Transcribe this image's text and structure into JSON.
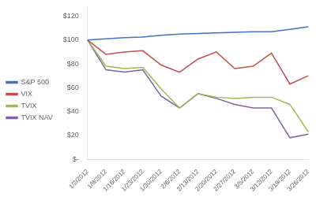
{
  "chart_data": {
    "type": "line",
    "categories": [
      "1/2/2012",
      "1/9/2012",
      "1/16/2012",
      "1/23/2012",
      "1/30/2012",
      "2/6/2012",
      "2/13/2012",
      "2/20/2012",
      "2/27/2012",
      "3/5/2012",
      "3/12/2012",
      "3/19/2012",
      "3/26/2012"
    ],
    "series": [
      {
        "name": "S&P 500",
        "color": "#4472C4",
        "values": [
          100,
          101,
          102,
          102.5,
          104,
          105,
          105.5,
          106,
          106.5,
          107,
          107,
          109,
          111
        ]
      },
      {
        "name": "VIX",
        "color": "#C0504D",
        "values": [
          100,
          88,
          90,
          91,
          79,
          73,
          84,
          90,
          76,
          78,
          89,
          63,
          70
        ]
      },
      {
        "name": "TVIX",
        "color": "#9BBB59",
        "values": [
          100,
          78,
          76,
          77,
          59,
          43,
          55,
          52,
          51,
          52,
          52,
          46,
          23
        ]
      },
      {
        "name": "TVIX NAV",
        "color": "#8064A2",
        "values": [
          100,
          75,
          73,
          75,
          53,
          43,
          55,
          51,
          46,
          43,
          43,
          18,
          21
        ]
      }
    ],
    "ylim": [
      0,
      128
    ],
    "yticks": [
      {
        "value": 0,
        "label": "$-"
      },
      {
        "value": 20,
        "label": "$20"
      },
      {
        "value": 40,
        "label": "$40"
      },
      {
        "value": 60,
        "label": "$60"
      },
      {
        "value": 80,
        "label": "$80"
      },
      {
        "value": 100,
        "label": "$100"
      },
      {
        "value": 120,
        "label": "$120"
      }
    ],
    "grid": false,
    "legend": "left"
  }
}
